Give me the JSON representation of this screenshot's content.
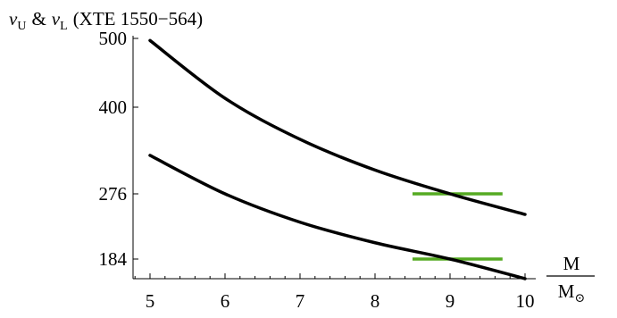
{
  "chart_data": {
    "type": "line",
    "title": {
      "nu_upper": "ν",
      "sub_upper": "U",
      "amp": "&",
      "nu_lower": "ν",
      "sub_lower": "L",
      "source": "(XTE 1550−564)"
    },
    "xlabel": {
      "numerator": "M",
      "denominator": "M",
      "denominator_sub": "⊙"
    },
    "ylabel": "",
    "xlim": [
      5,
      10
    ],
    "ylim": [
      165,
      505
    ],
    "x_ticks": [
      "5",
      "6",
      "7",
      "8",
      "9",
      "10"
    ],
    "y_ticks": [
      "184",
      "276",
      "400",
      "500"
    ],
    "grid": false,
    "series": [
      {
        "color": "#000000",
        "points": [
          [
            5,
            497
          ],
          [
            6,
            413
          ],
          [
            7,
            354
          ],
          [
            8,
            310
          ],
          [
            9,
            276
          ],
          [
            10,
            247
          ]
        ]
      },
      {
        "color": "#000000",
        "points": [
          [
            5,
            331
          ],
          [
            6,
            276
          ],
          [
            7,
            236
          ],
          [
            8,
            207
          ],
          [
            9,
            184
          ],
          [
            10,
            165
          ]
        ]
      }
    ],
    "reference_lines": [
      {
        "y": 276,
        "x_start": 8.5,
        "x_end": 9.7,
        "color": "#55aa22"
      },
      {
        "y": 184,
        "x_start": 8.5,
        "x_end": 9.7,
        "color": "#55aa22"
      }
    ]
  }
}
